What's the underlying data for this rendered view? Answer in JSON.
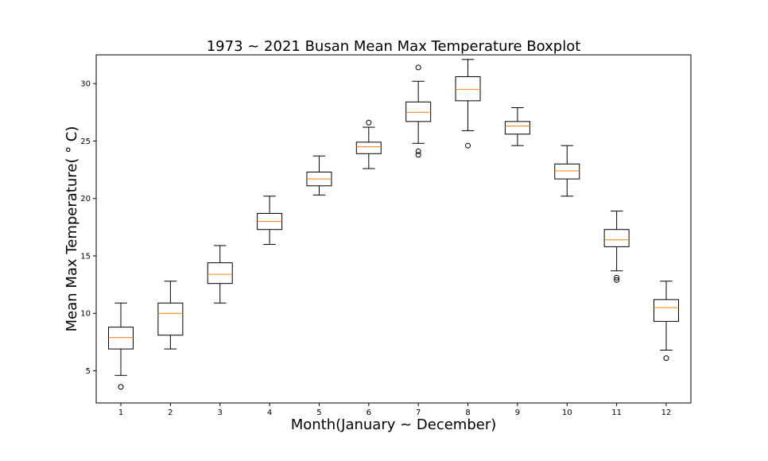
{
  "chart_data": {
    "type": "boxplot",
    "title": "1973 ~ 2021 Busan Mean Max Temperature Boxplot",
    "xlabel": "Month(January ~ December)",
    "ylabel": "Mean Max Temperature( ° C)",
    "categories": [
      "1",
      "2",
      "3",
      "4",
      "5",
      "6",
      "7",
      "8",
      "9",
      "10",
      "11",
      "12"
    ],
    "yticks": [
      5,
      10,
      15,
      20,
      25,
      30
    ],
    "ylim": [
      2.2,
      32.5
    ],
    "grid": false,
    "colors": {
      "box": "#000000",
      "median": "#ff7f0e",
      "outlier": "#000000"
    },
    "boxes": [
      {
        "month": "1",
        "whisker_low": 4.6,
        "q1": 6.9,
        "median": 7.9,
        "q3": 8.8,
        "whisker_high": 10.9,
        "outliers": [
          3.6
        ]
      },
      {
        "month": "2",
        "whisker_low": 6.9,
        "q1": 8.1,
        "median": 10.0,
        "q3": 10.9,
        "whisker_high": 12.8,
        "outliers": []
      },
      {
        "month": "3",
        "whisker_low": 10.9,
        "q1": 12.6,
        "median": 13.4,
        "q3": 14.4,
        "whisker_high": 15.9,
        "outliers": []
      },
      {
        "month": "4",
        "whisker_low": 16.0,
        "q1": 17.3,
        "median": 18.0,
        "q3": 18.7,
        "whisker_high": 20.2,
        "outliers": []
      },
      {
        "month": "5",
        "whisker_low": 20.3,
        "q1": 21.1,
        "median": 21.7,
        "q3": 22.3,
        "whisker_high": 23.7,
        "outliers": []
      },
      {
        "month": "6",
        "whisker_low": 22.6,
        "q1": 23.9,
        "median": 24.5,
        "q3": 24.9,
        "whisker_high": 26.2,
        "outliers": [
          26.6
        ]
      },
      {
        "month": "7",
        "whisker_low": 24.8,
        "q1": 26.7,
        "median": 27.5,
        "q3": 28.4,
        "whisker_high": 30.2,
        "outliers": [
          31.4,
          24.1,
          23.8
        ]
      },
      {
        "month": "8",
        "whisker_low": 25.9,
        "q1": 28.5,
        "median": 29.5,
        "q3": 30.6,
        "whisker_high": 32.1,
        "outliers": [
          24.6
        ]
      },
      {
        "month": "9",
        "whisker_low": 24.6,
        "q1": 25.6,
        "median": 26.3,
        "q3": 26.7,
        "whisker_high": 27.9,
        "outliers": []
      },
      {
        "month": "10",
        "whisker_low": 20.2,
        "q1": 21.7,
        "median": 22.4,
        "q3": 23.0,
        "whisker_high": 24.6,
        "outliers": []
      },
      {
        "month": "11",
        "whisker_low": 13.7,
        "q1": 15.8,
        "median": 16.4,
        "q3": 17.3,
        "whisker_high": 18.9,
        "outliers": [
          13.1,
          12.9
        ]
      },
      {
        "month": "12",
        "whisker_low": 6.8,
        "q1": 9.3,
        "median": 10.5,
        "q3": 11.2,
        "whisker_high": 12.8,
        "outliers": [
          6.1
        ]
      }
    ]
  }
}
